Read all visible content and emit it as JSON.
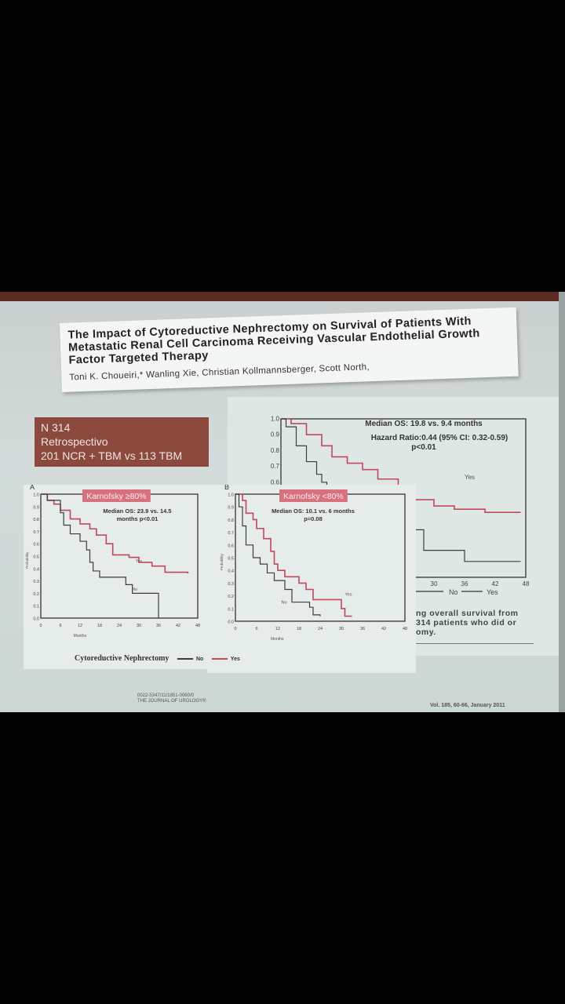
{
  "slide": {
    "title": "The Impact of Cytoreductive Nephrectomy on Survival of Patients With Metastatic Renal Cell Carcinoma Receiving Vascular Endothelial Growth Factor Targeted Therapy",
    "authors": "Toni K. Choueiri,* Wanling Xie, Christian Kollmannsberger, Scott North,",
    "info": [
      "N 314",
      "Retrospectivo",
      "201 NCR + TBM vs 113 TBM"
    ],
    "caption": [
      "ng overall survival from",
      "314 patients who did or",
      "omy."
    ],
    "legend": {
      "title": "Cytoreductive Nephrectomy",
      "no": "No",
      "yes": "Yes"
    },
    "footer_left": [
      "0022-5347/11/1851-0060/0",
      "THE JOURNAL OF UROLOGY®"
    ],
    "footer_right": "Vol. 185, 60-66, January 2011"
  },
  "colors": {
    "yes": "#c0485c",
    "no": "#3a3f3c",
    "label_bg": "#d9707e",
    "info_bg": "#8c4a3f"
  },
  "chart_data": [
    {
      "type": "line",
      "panel": "background",
      "annotations": [
        "Median OS: 19.8 vs. 9.4 months",
        "Hazard Ratio:0.44 (95% CI: 0.32-0.59)",
        "p<0.01"
      ],
      "xticks": [
        "30",
        "36",
        "42",
        "48"
      ],
      "yticks": [
        "1.0",
        "0.9",
        "0.8",
        "0.7",
        "0.6"
      ],
      "legend": [
        "No",
        "Yes"
      ],
      "xlim": [
        0,
        48
      ],
      "ylim": [
        0,
        1
      ],
      "series": [
        {
          "name": "Yes",
          "x": [
            0,
            2,
            5,
            8,
            10,
            13,
            16,
            19,
            23,
            26,
            30,
            34,
            37,
            40,
            47
          ],
          "y": [
            1,
            0.97,
            0.9,
            0.83,
            0.76,
            0.72,
            0.68,
            0.62,
            0.54,
            0.49,
            0.45,
            0.43,
            0.43,
            0.41,
            0.41
          ]
        },
        {
          "name": "No",
          "x": [
            0,
            1,
            3,
            5,
            7,
            8,
            9,
            11,
            14,
            20,
            28,
            36,
            47
          ],
          "y": [
            1,
            0.95,
            0.83,
            0.73,
            0.65,
            0.6,
            0.56,
            0.52,
            0.4,
            0.3,
            0.17,
            0.1,
            0.1
          ]
        }
      ]
    },
    {
      "type": "line",
      "panel_label": "A",
      "label": "Karnofsky ≥80%",
      "annotations": [
        "Median OS: 23.9  vs. 14.5",
        "months p<0.01"
      ],
      "xlabel": "Months",
      "ylabel": "Probability",
      "xticks": [
        "0",
        "6",
        "12",
        "18",
        "24",
        "30",
        "36",
        "42",
        "48"
      ],
      "yticks": [
        "0.0",
        "0.1",
        "0.2",
        "0.3",
        "0.4",
        "0.5",
        "0.6",
        "0.7",
        "0.8",
        "0.9",
        "1.0"
      ],
      "xlim": [
        0,
        48
      ],
      "ylim": [
        0,
        1
      ],
      "series": [
        {
          "name": "Yes",
          "x": [
            0,
            2,
            4,
            6,
            9,
            12,
            15,
            17,
            20,
            22,
            27,
            30,
            34,
            38,
            45
          ],
          "y": [
            1,
            0.95,
            0.92,
            0.87,
            0.8,
            0.76,
            0.72,
            0.67,
            0.6,
            0.51,
            0.49,
            0.45,
            0.42,
            0.37,
            0.36
          ]
        },
        {
          "name": "No",
          "x": [
            0,
            2,
            6,
            7,
            9,
            12,
            14,
            15,
            16,
            18,
            26,
            28,
            35,
            36
          ],
          "y": [
            1,
            0.95,
            0.85,
            0.75,
            0.68,
            0.62,
            0.55,
            0.45,
            0.38,
            0.33,
            0.27,
            0.2,
            0.2,
            0
          ]
        }
      ]
    },
    {
      "type": "line",
      "panel_label": "B",
      "label": "Karnofsky <80%",
      "annotations": [
        "Median OS: 10.1 vs. 6 months",
        "p=0.08"
      ],
      "xlabel": "Months",
      "ylabel": "Probability",
      "xticks": [
        "0",
        "6",
        "12",
        "18",
        "24",
        "30",
        "36",
        "42",
        "48"
      ],
      "yticks": [
        "0.0",
        "0.1",
        "0.2",
        "0.3",
        "0.4",
        "0.5",
        "0.6",
        "0.7",
        "0.8",
        "0.9",
        "1.0"
      ],
      "xlim": [
        0,
        48
      ],
      "ylim": [
        0,
        1
      ],
      "series": [
        {
          "name": "Yes",
          "x": [
            0,
            2,
            3,
            5,
            6,
            8,
            10,
            11,
            12,
            14,
            18,
            20,
            22,
            29,
            30,
            31,
            33
          ],
          "y": [
            1,
            0.95,
            0.85,
            0.8,
            0.73,
            0.65,
            0.55,
            0.45,
            0.4,
            0.35,
            0.3,
            0.25,
            0.17,
            0.17,
            0.1,
            0.04,
            0.04
          ]
        },
        {
          "name": "No",
          "x": [
            0,
            1,
            2,
            3,
            5,
            7,
            9,
            11,
            14,
            16,
            21,
            22,
            24
          ],
          "y": [
            1,
            0.9,
            0.75,
            0.6,
            0.5,
            0.45,
            0.38,
            0.32,
            0.25,
            0.15,
            0.11,
            0.05,
            0.04
          ]
        }
      ]
    }
  ]
}
